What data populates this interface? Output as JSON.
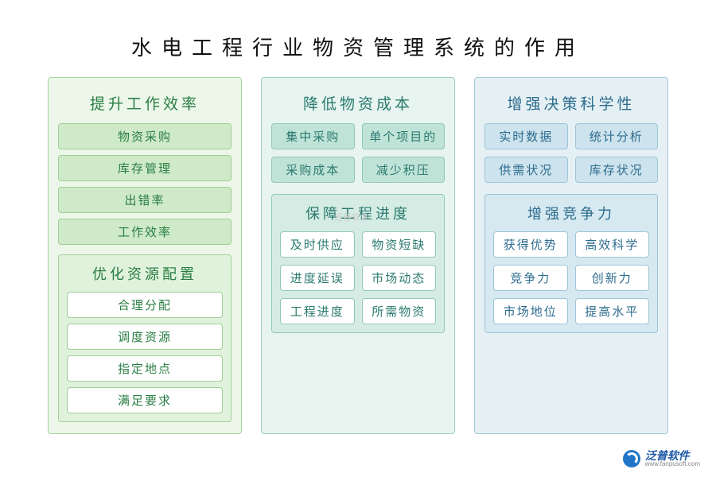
{
  "title": "水电工程行业物资管理系统的作用",
  "columns": [
    {
      "color_theme": "green",
      "panel_bg": "#ecf7ea",
      "panel_border": "#a7d4a0",
      "text_color": "#2a7d43",
      "section_a": {
        "title": "提升工作效率",
        "layout": "list",
        "items": [
          "物资采购",
          "库存管理",
          "出错率",
          "工作效率"
        ]
      },
      "section_b": {
        "title": "优化资源配置",
        "layout": "list",
        "items": [
          "合理分配",
          "调度资源",
          "指定地点",
          "满足要求"
        ]
      }
    },
    {
      "color_theme": "teal",
      "panel_bg": "#e7f4ef",
      "panel_border": "#9ed0bf",
      "text_color": "#2a7a6e",
      "section_a": {
        "title": "降低物资成本",
        "layout": "grid2",
        "items": [
          "集中采购",
          "单个项目的",
          "采购成本",
          "减少积压"
        ]
      },
      "section_b": {
        "title": "保障工程进度",
        "layout": "grid2",
        "items": [
          "及时供应",
          "物资短缺",
          "进度延误",
          "市场动态",
          "工程进度",
          "所需物资"
        ]
      }
    },
    {
      "color_theme": "blue",
      "panel_bg": "#e5f0f4",
      "panel_border": "#a4c7d7",
      "text_color": "#2d6c8e",
      "section_a": {
        "title": "增强决策科学性",
        "layout": "grid2",
        "items": [
          "实时数据",
          "统计分析",
          "供需状况",
          "库存状况"
        ]
      },
      "section_b": {
        "title": "增强竞争力",
        "layout": "grid2",
        "items": [
          "获得优势",
          "高效科学",
          "竞争力",
          "创新力",
          "市场地位",
          "提高水平"
        ]
      }
    }
  ],
  "watermark": "泛普软件",
  "logo": {
    "cn": "泛普软件",
    "en": "www.fanpusoft.com"
  },
  "styling": {
    "title_fontsize": 26,
    "title_letter_spacing": 12,
    "section_title_fontsize": 19,
    "pill_fontsize": 15,
    "column_gap": 24,
    "colors": {
      "green": {
        "bg": "#ecf7ea",
        "border": "#a7d4a0",
        "pill_fill": "#cfeac8",
        "text": "#2a7d43"
      },
      "teal": {
        "bg": "#e7f4ef",
        "border": "#9ed0bf",
        "pill_fill": "#c0e3d8",
        "text": "#2a7a6e"
      },
      "blue": {
        "bg": "#e5f0f4",
        "border": "#a4c7d7",
        "pill_fill": "#cde3ed",
        "text": "#2d6c8e"
      }
    }
  }
}
